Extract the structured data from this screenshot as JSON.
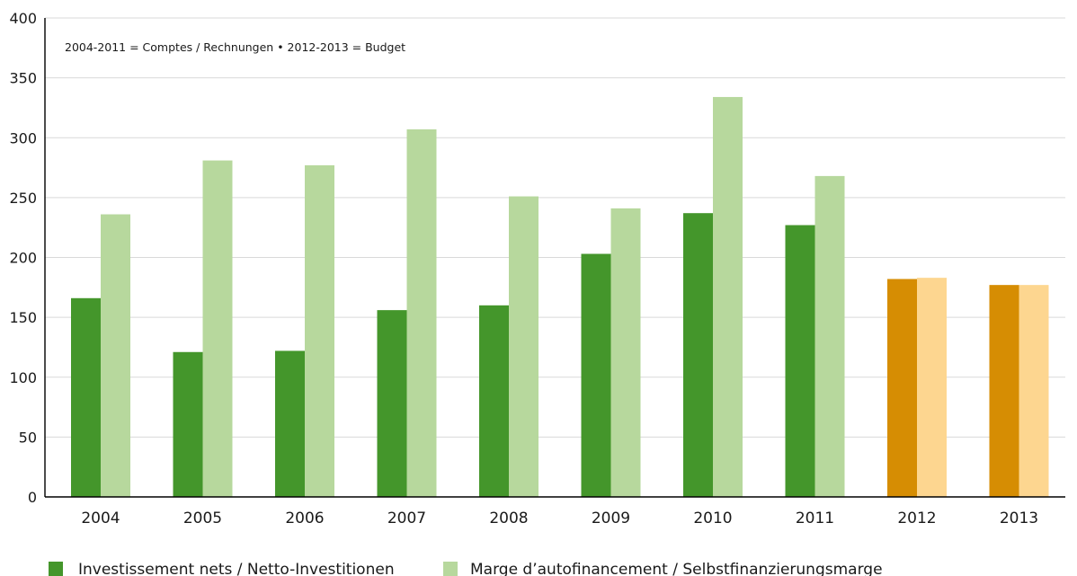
{
  "chart_data": {
    "type": "bar",
    "note": "2004-2011 = Comptes / Rechnungen  •  2012-2013 = Budget",
    "categories": [
      "2004",
      "2005",
      "2006",
      "2007",
      "2008",
      "2009",
      "2010",
      "2011",
      "2012",
      "2013"
    ],
    "series": [
      {
        "name": "Investissement nets / Netto-Investitionen",
        "values": [
          166,
          121,
          122,
          156,
          160,
          203,
          237,
          227,
          182,
          177
        ],
        "color": "#44962b",
        "budget_color": "#d68d03"
      },
      {
        "name": "Marge d’autofinancement / Selbstfinanzierungsmarge",
        "values": [
          236,
          281,
          277,
          307,
          251,
          241,
          334,
          268,
          183,
          177
        ],
        "color": "#b7d89d",
        "budget_color": "#fdd690"
      }
    ],
    "budget_categories": [
      "2012",
      "2013"
    ],
    "ylim": [
      0,
      400
    ],
    "yticks": [
      0,
      50,
      100,
      150,
      200,
      250,
      300,
      350,
      400
    ],
    "grid": true,
    "legend_position": "bottom-left"
  }
}
